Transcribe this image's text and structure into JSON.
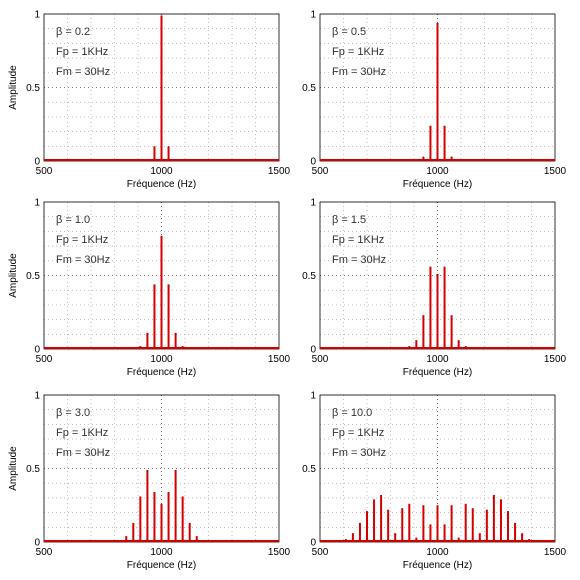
{
  "chart_data": [
    {
      "type": "bar",
      "ylabel": "Amplitude",
      "xlabel": "Fréquence (Hz)",
      "xlim": [
        500,
        1500
      ],
      "ylim": [
        0,
        1
      ],
      "xticks": [
        "500",
        "1000",
        "1500"
      ],
      "yticks": [
        "0",
        "0.5",
        "1"
      ],
      "annotations": [
        "β = 0.2",
        "Fp = 1KHz",
        "Fm = 30Hz"
      ],
      "grid": true,
      "x": [
        970,
        1000,
        1030
      ],
      "values": [
        0.1,
        0.99,
        0.1
      ]
    },
    {
      "type": "bar",
      "ylabel": "",
      "xlabel": "Fréquence (Hz)",
      "xlim": [
        500,
        1500
      ],
      "ylim": [
        0,
        1
      ],
      "xticks": [
        "500",
        "1000",
        "1500"
      ],
      "yticks": [
        "0",
        "0.5",
        "1"
      ],
      "annotations": [
        "β = 0.5",
        "Fp = 1KHz",
        "Fm = 30Hz"
      ],
      "grid": true,
      "x": [
        940,
        970,
        1000,
        1030,
        1060
      ],
      "values": [
        0.03,
        0.24,
        0.94,
        0.24,
        0.03
      ]
    },
    {
      "type": "bar",
      "ylabel": "Amplitude",
      "xlabel": "Fréquence (Hz)",
      "xlim": [
        500,
        1500
      ],
      "ylim": [
        0,
        1
      ],
      "xticks": [
        "500",
        "1000",
        "1500"
      ],
      "yticks": [
        "0",
        "0.5",
        "1"
      ],
      "annotations": [
        "β = 1.0",
        "Fp = 1KHz",
        "Fm = 30Hz"
      ],
      "grid": true,
      "x": [
        910,
        940,
        970,
        1000,
        1030,
        1060,
        1090
      ],
      "values": [
        0.02,
        0.11,
        0.44,
        0.77,
        0.44,
        0.11,
        0.02
      ]
    },
    {
      "type": "bar",
      "ylabel": "",
      "xlabel": "Fréquence (Hz)",
      "xlim": [
        500,
        1500
      ],
      "ylim": [
        0,
        1
      ],
      "xticks": [
        "500",
        "1000",
        "1500"
      ],
      "yticks": [
        "0",
        "0.5",
        "1"
      ],
      "annotations": [
        "β = 1.5",
        "Fp = 1KHz",
        "Fm = 30Hz"
      ],
      "grid": true,
      "x": [
        880,
        910,
        940,
        970,
        1000,
        1030,
        1060,
        1090,
        1120
      ],
      "values": [
        0.02,
        0.06,
        0.23,
        0.56,
        0.51,
        0.56,
        0.23,
        0.06,
        0.02
      ]
    },
    {
      "type": "bar",
      "ylabel": "Amplitude",
      "xlabel": "Fréquence (Hz)",
      "xlim": [
        500,
        1500
      ],
      "ylim": [
        0,
        1
      ],
      "xticks": [
        "500",
        "1000",
        "1500"
      ],
      "yticks": [
        "0",
        "0.5",
        "1"
      ],
      "annotations": [
        "β = 3.0",
        "Fp = 1KHz",
        "Fm = 30Hz"
      ],
      "grid": true,
      "x": [
        820,
        850,
        880,
        910,
        940,
        970,
        1000,
        1030,
        1060,
        1090,
        1120,
        1150,
        1180
      ],
      "values": [
        0.01,
        0.04,
        0.13,
        0.31,
        0.49,
        0.34,
        0.26,
        0.34,
        0.49,
        0.31,
        0.13,
        0.04,
        0.01
      ]
    },
    {
      "type": "bar",
      "ylabel": "",
      "xlabel": "Fréquence (Hz)",
      "xlim": [
        500,
        1500
      ],
      "ylim": [
        0,
        1
      ],
      "xticks": [
        "500",
        "1000",
        "1500"
      ],
      "yticks": [
        "0",
        "0.5",
        "1"
      ],
      "annotations": [
        "β = 10.0",
        "Fp = 1KHz",
        "Fm = 30Hz"
      ],
      "grid": true,
      "x": [
        610,
        640,
        670,
        700,
        730,
        760,
        790,
        820,
        850,
        880,
        910,
        940,
        970,
        1000,
        1030,
        1060,
        1090,
        1120,
        1150,
        1180,
        1210,
        1240,
        1270,
        1300,
        1330,
        1360,
        1390
      ],
      "values": [
        0.02,
        0.06,
        0.13,
        0.21,
        0.29,
        0.32,
        0.22,
        0.06,
        0.23,
        0.26,
        0.03,
        0.25,
        0.12,
        0.25,
        0.12,
        0.25,
        0.03,
        0.26,
        0.23,
        0.06,
        0.22,
        0.32,
        0.29,
        0.21,
        0.13,
        0.06,
        0.02
      ]
    }
  ]
}
